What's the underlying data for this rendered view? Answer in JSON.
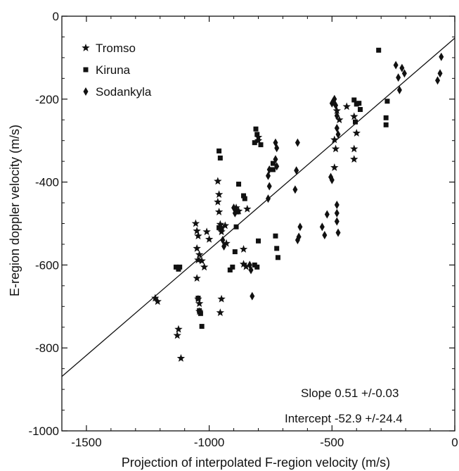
{
  "chart_data": {
    "type": "scatter",
    "xlabel": "Projection of interpolated F-region velocity (m/s)",
    "ylabel": "E-region doppler velocity (m/s)",
    "xlim": [
      -1600,
      0
    ],
    "ylim": [
      -1000,
      0
    ],
    "x_ticks": [
      -1500,
      -1000,
      -500,
      0
    ],
    "y_ticks": [
      0,
      -200,
      -400,
      -600,
      -800,
      -1000
    ],
    "x_tick_labels": [
      "-1500",
      "-1000",
      "-500",
      "0"
    ],
    "y_tick_labels": [
      "0",
      "-200",
      "-400",
      "-600",
      "-800",
      "-1000"
    ],
    "legend_position": "top-left",
    "fit_line": {
      "slope": 0.51,
      "intercept": -52.9
    },
    "annotations": [
      "Slope  0.51 +/-0.03",
      "Intercept  -52.9 +/-24.4"
    ],
    "series": [
      {
        "name": "Tromso",
        "marker": "star",
        "points": [
          [
            -1220,
            -680
          ],
          [
            -1210,
            -688
          ],
          [
            -1125,
            -755
          ],
          [
            -1130,
            -770
          ],
          [
            -1115,
            -825
          ],
          [
            -1055,
            -500
          ],
          [
            -1050,
            -518
          ],
          [
            -1045,
            -530
          ],
          [
            -1050,
            -560
          ],
          [
            -1040,
            -575
          ],
          [
            -1045,
            -588
          ],
          [
            -1030,
            -590
          ],
          [
            -1050,
            -632
          ],
          [
            -1045,
            -682
          ],
          [
            -1040,
            -693
          ],
          [
            -1040,
            -712
          ],
          [
            -1020,
            -605
          ],
          [
            -1010,
            -520
          ],
          [
            -1000,
            -538
          ],
          [
            -965,
            -398
          ],
          [
            -960,
            -430
          ],
          [
            -965,
            -448
          ],
          [
            -960,
            -472
          ],
          [
            -955,
            -502
          ],
          [
            -950,
            -520
          ],
          [
            -955,
            -715
          ],
          [
            -950,
            -682
          ],
          [
            -935,
            -505
          ],
          [
            -930,
            -548
          ],
          [
            -890,
            -462
          ],
          [
            -880,
            -470
          ],
          [
            -860,
            -562
          ],
          [
            -860,
            -598
          ],
          [
            -850,
            -604
          ],
          [
            -845,
            -465
          ],
          [
            -800,
            -292
          ],
          [
            -800,
            -300
          ],
          [
            -440,
            -218
          ],
          [
            -410,
            -242
          ],
          [
            -400,
            -282
          ],
          [
            -410,
            -320
          ],
          [
            -410,
            -345
          ],
          [
            -480,
            -228
          ],
          [
            -470,
            -250
          ],
          [
            -490,
            -298
          ],
          [
            -485,
            -320
          ],
          [
            -490,
            -365
          ]
        ]
      },
      {
        "name": "Kiruna",
        "marker": "square",
        "points": [
          [
            -1135,
            -605
          ],
          [
            -1125,
            -610
          ],
          [
            -1120,
            -605
          ],
          [
            -1045,
            -680
          ],
          [
            -1040,
            -710
          ],
          [
            -1035,
            -717
          ],
          [
            -1030,
            -748
          ],
          [
            -960,
            -325
          ],
          [
            -955,
            -342
          ],
          [
            -960,
            -510
          ],
          [
            -950,
            -512
          ],
          [
            -915,
            -612
          ],
          [
            -905,
            -605
          ],
          [
            -895,
            -568
          ],
          [
            -890,
            -508
          ],
          [
            -885,
            -472
          ],
          [
            -880,
            -405
          ],
          [
            -860,
            -433
          ],
          [
            -855,
            -440
          ],
          [
            -815,
            -600
          ],
          [
            -805,
            -605
          ],
          [
            -815,
            -305
          ],
          [
            -810,
            -272
          ],
          [
            -805,
            -285
          ],
          [
            -790,
            -310
          ],
          [
            -800,
            -542
          ],
          [
            -740,
            -355
          ],
          [
            -740,
            -370
          ],
          [
            -730,
            -530
          ],
          [
            -725,
            -560
          ],
          [
            -720,
            -582
          ],
          [
            -310,
            -82
          ],
          [
            -280,
            -245
          ],
          [
            -280,
            -262
          ],
          [
            -275,
            -205
          ],
          [
            -410,
            -202
          ],
          [
            -400,
            -212
          ],
          [
            -390,
            -210
          ],
          [
            -385,
            -225
          ],
          [
            -405,
            -255
          ]
        ]
      },
      {
        "name": "Sodankyla",
        "marker": "diamond",
        "points": [
          [
            -945,
            -540
          ],
          [
            -940,
            -555
          ],
          [
            -900,
            -462
          ],
          [
            -895,
            -475
          ],
          [
            -835,
            -600
          ],
          [
            -830,
            -612
          ],
          [
            -825,
            -675
          ],
          [
            -760,
            -440
          ],
          [
            -755,
            -410
          ],
          [
            -760,
            -385
          ],
          [
            -755,
            -370
          ],
          [
            -730,
            -305
          ],
          [
            -725,
            -318
          ],
          [
            -730,
            -345
          ],
          [
            -725,
            -362
          ],
          [
            -650,
            -418
          ],
          [
            -645,
            -372
          ],
          [
            -640,
            -305
          ],
          [
            -640,
            -540
          ],
          [
            -635,
            -532
          ],
          [
            -630,
            -508
          ],
          [
            -540,
            -508
          ],
          [
            -530,
            -528
          ],
          [
            -520,
            -478
          ],
          [
            -505,
            -388
          ],
          [
            -500,
            -395
          ],
          [
            -500,
            -210
          ],
          [
            -495,
            -205
          ],
          [
            -490,
            -200
          ],
          [
            -485,
            -215
          ],
          [
            -480,
            -240
          ],
          [
            -480,
            -270
          ],
          [
            -475,
            -285
          ],
          [
            -480,
            -455
          ],
          [
            -480,
            -475
          ],
          [
            -480,
            -495
          ],
          [
            -475,
            -522
          ],
          [
            -240,
            -118
          ],
          [
            -230,
            -148
          ],
          [
            -225,
            -178
          ],
          [
            -215,
            -125
          ],
          [
            -205,
            -138
          ],
          [
            -70,
            -155
          ],
          [
            -60,
            -138
          ],
          [
            -55,
            -98
          ]
        ]
      }
    ]
  }
}
